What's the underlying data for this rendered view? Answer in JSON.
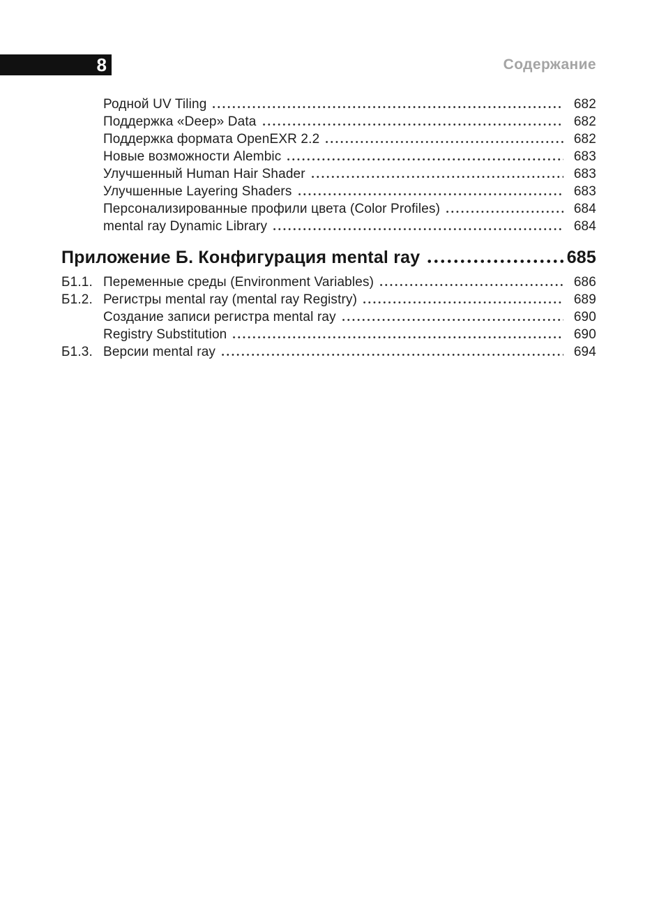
{
  "header": {
    "page_number": "8",
    "running_title": "Содержание"
  },
  "toc": {
    "pre_entries": [
      {
        "label": "Родной UV Tiling",
        "page": "682"
      },
      {
        "label": "Поддержка «Deep» Data",
        "page": "682"
      },
      {
        "label": "Поддержка формата OpenEXR 2.2",
        "page": "682"
      },
      {
        "label": "Новые возможности Alembic",
        "page": "683"
      },
      {
        "label": "Улучшенный Human Hair Shader",
        "page": "683"
      },
      {
        "label": "Улучшенные Layering Shaders",
        "page": "683"
      },
      {
        "label": "Персонализированные профили цвета (Color Profiles)",
        "page": "684"
      },
      {
        "label": "mental ray Dynamic Library",
        "page": "684"
      }
    ],
    "section_heading": {
      "label": "Приложение Б. Конфигурация mental ray",
      "page": "685"
    },
    "appendix_entries": [
      {
        "number": "Б1.1.",
        "label": "Переменные среды (Environment Variables)",
        "page": "686"
      },
      {
        "number": "Б1.2.",
        "label": "Регистры mental ray (mental ray Registry)",
        "page": "689"
      },
      {
        "number": "",
        "label": "Создание записи регистра mental ray",
        "page": "690"
      },
      {
        "number": "",
        "label": "Registry Substitution",
        "page": "690"
      },
      {
        "number": "Б1.3.",
        "label": "Версии mental ray",
        "page": "694"
      }
    ]
  },
  "colors": {
    "text": "#1e1e1e",
    "header_bar": "#111111",
    "running_title": "#a4a4a4"
  }
}
